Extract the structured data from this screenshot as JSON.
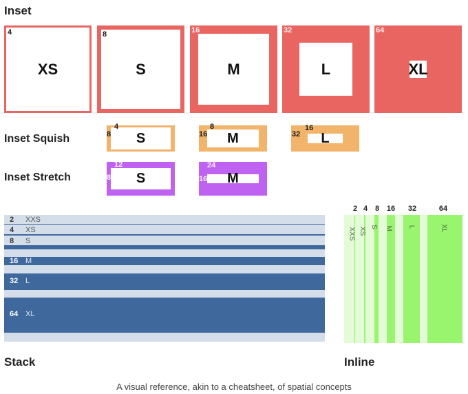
{
  "colors": {
    "inset": "#e96561",
    "squish": "#f1b46a",
    "stretch": "#bf62f2",
    "stack_bar": "#3f689c",
    "stack_bg": "#d3deea",
    "inline_bar": "#98f56d",
    "inline_bg": "#e4fbd8"
  },
  "inset": {
    "title": "Inset",
    "items": [
      {
        "num": "4",
        "label": "XS"
      },
      {
        "num": "8",
        "label": "S"
      },
      {
        "num": "16",
        "label": "M"
      },
      {
        "num": "32",
        "label": "L"
      },
      {
        "num": "64",
        "label": "XL"
      }
    ]
  },
  "squish": {
    "title": "Inset Squish",
    "items": [
      {
        "top": "4",
        "side": "8",
        "label": "S"
      },
      {
        "top": "8",
        "side": "16",
        "label": "M"
      },
      {
        "top": "16",
        "side": "32",
        "label": "L"
      }
    ]
  },
  "stretch": {
    "title": "Inset Stretch",
    "items": [
      {
        "top": "12",
        "side": "8",
        "label": "S"
      },
      {
        "top": "24",
        "side": "16",
        "label": "M"
      }
    ]
  },
  "stack": {
    "title": "Stack",
    "items": [
      {
        "num": "2",
        "label": "XXS"
      },
      {
        "num": "4",
        "label": "XS"
      },
      {
        "num": "8",
        "label": "S"
      },
      {
        "num": "16",
        "label": "M"
      },
      {
        "num": "32",
        "label": "L"
      },
      {
        "num": "64",
        "label": "XL"
      }
    ]
  },
  "inline": {
    "title": "Inline",
    "items": [
      {
        "num": "2",
        "label": "XXS"
      },
      {
        "num": "4",
        "label": "XS"
      },
      {
        "num": "8",
        "label": "S"
      },
      {
        "num": "16",
        "label": "M"
      },
      {
        "num": "32",
        "label": "L"
      },
      {
        "num": "64",
        "label": "XL"
      }
    ]
  },
  "caption": "A visual reference, akin to a cheatsheet, of spatial concepts"
}
